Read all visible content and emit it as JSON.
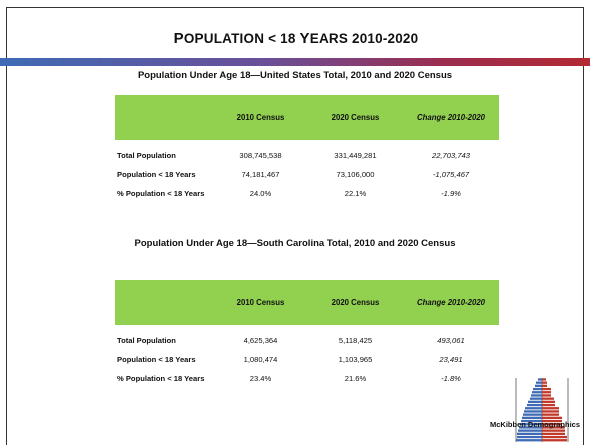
{
  "slide": {
    "title_prefix": "P",
    "title_rest": "OPULATION < 18 ",
    "title_y": "Y",
    "title_rest2": "EARS 2010-2020"
  },
  "us": {
    "title": "Population Under Age 18—United States Total, 2010 and 2020 Census",
    "headers": [
      "",
      "2010 Census",
      "2020 Census",
      "Change 2010-2020"
    ],
    "rows": [
      {
        "label": "Total Population",
        "c2010": "308,745,538",
        "c2020": "331,449,281",
        "change": "22,703,743"
      },
      {
        "label": "Population < 18 Years",
        "c2010": "74,181,467",
        "c2020": "73,106,000",
        "change": "-1,075,467"
      },
      {
        "label": "% Population < 18 Years",
        "c2010": "24.0%",
        "c2020": "22.1%",
        "change": "-1.9%"
      }
    ]
  },
  "sc": {
    "title": "Population Under Age 18—South Carolina Total, 2010 and 2020 Census",
    "headers": [
      "",
      "2010 Census",
      "2020 Census",
      "Change 2010-2020"
    ],
    "rows": [
      {
        "label": "Total Population",
        "c2010": "4,625,364",
        "c2020": "5,118,425",
        "change": "493,061"
      },
      {
        "label": "Population < 18 Years",
        "c2010": "1,080,474",
        "c2020": "1,103,965",
        "change": "23,491"
      },
      {
        "label": "% Population < 18 Years",
        "c2010": "23.4%",
        "c2020": "21.6%",
        "change": "-1.8%"
      }
    ]
  },
  "logo": {
    "text": "McKibben Demographics",
    "colors": {
      "left": "#3f6bb5",
      "right": "#c0392b"
    }
  },
  "colors": {
    "header_green": "#92d050",
    "bar_blue": "#3f6bb5",
    "bar_red": "#b22a33"
  }
}
